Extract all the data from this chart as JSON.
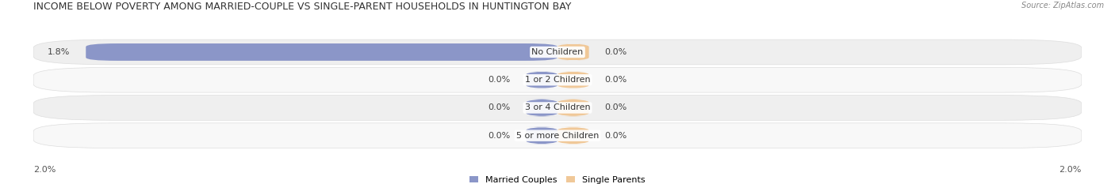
{
  "title": "INCOME BELOW POVERTY AMONG MARRIED-COUPLE VS SINGLE-PARENT HOUSEHOLDS IN HUNTINGTON BAY",
  "source": "Source: ZipAtlas.com",
  "categories": [
    "No Children",
    "1 or 2 Children",
    "3 or 4 Children",
    "5 or more Children"
  ],
  "married_values": [
    1.8,
    0.0,
    0.0,
    0.0
  ],
  "single_values": [
    0.0,
    0.0,
    0.0,
    0.0
  ],
  "married_color": "#8B96C8",
  "single_color": "#F0C898",
  "row_bg_even": "#EFEFEF",
  "row_bg_odd": "#F8F8F8",
  "max_value": 2.0,
  "axis_label": "2.0%",
  "legend_married": "Married Couples",
  "legend_single": "Single Parents",
  "title_fontsize": 9,
  "label_fontsize": 8,
  "value_fontsize": 8,
  "axis_label_fontsize": 8,
  "background_color": "#FFFFFF",
  "stub_size": 0.12
}
